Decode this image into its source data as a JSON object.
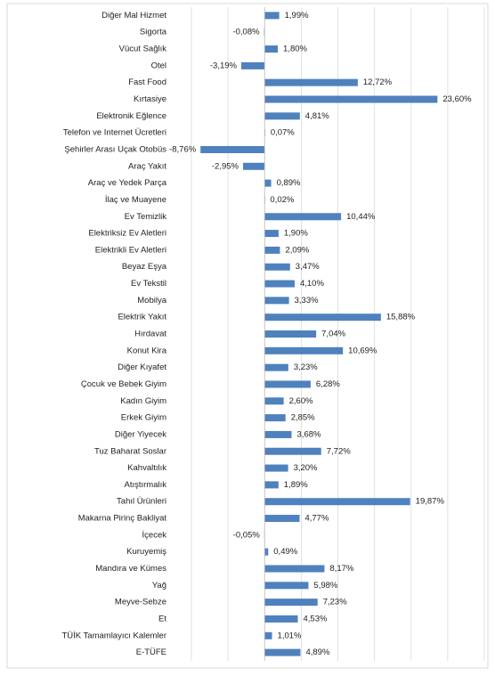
{
  "chart_data": {
    "type": "hbar",
    "color": "#4f81bd",
    "categories": [
      "Diğer Mal Hizmet",
      "Sigorta",
      "Vücut Sağlık",
      "Otel",
      "Fast Food",
      "Kırtasiye",
      "Elektronik Eğlence",
      "Telefon ve Internet Ücretleri",
      "Şehirler Arası Uçak Otobüs",
      "Araç Yakıt",
      "Araç ve Yedek Parça",
      "İlaç ve Muayene",
      "Ev Temizlik",
      "Elektriksiz Ev Aletleri",
      "Elektrikli Ev Aletleri",
      "Beyaz Eşya",
      "Ev Tekstil",
      "Mobilya",
      "Elektrik Yakıt",
      "Hırdavat",
      "Konut Kira",
      "Diğer Kıyafet",
      "Çocuk ve Bebek Giyim",
      "Kadın Giyim",
      "Erkek Giyim",
      "Diğer Yiyecek",
      "Tuz Baharat Soslar",
      "Kahvaltılık",
      "Atıştırmalık",
      "Tahıl Ürünleri",
      "Makarna Pirinç Bakliyat",
      "İçecek",
      "Kuruyemiş",
      "Mandıra ve Kümes",
      "Yağ",
      "Meyve-Sebze",
      "Et",
      "TÜİK Tamamlayıcı Kalemler",
      "E-TÜFE"
    ],
    "values": [
      1.99,
      -0.08,
      1.8,
      -3.19,
      12.72,
      23.6,
      4.81,
      0.07,
      -8.76,
      -2.95,
      0.89,
      0.02,
      10.44,
      1.9,
      2.09,
      3.47,
      4.1,
      3.33,
      15.88,
      7.04,
      10.69,
      3.23,
      6.28,
      2.6,
      2.85,
      3.68,
      7.72,
      3.2,
      1.89,
      19.87,
      4.77,
      -0.05,
      0.49,
      8.17,
      5.98,
      7.23,
      4.53,
      1.01,
      4.89
    ],
    "value_labels": [
      "1,99%",
      "-0,08%",
      "1,80%",
      "-3,19%",
      "12,72%",
      "23,60%",
      "4,81%",
      "0,07%",
      "-8,76%",
      "-2,95%",
      "0,89%",
      "0,02%",
      "10,44%",
      "1,90%",
      "2,09%",
      "3,47%",
      "4,10%",
      "3,33%",
      "15,88%",
      "7,04%",
      "10,69%",
      "3,23%",
      "6,28%",
      "2,60%",
      "2,85%",
      "3,68%",
      "7,72%",
      "3,20%",
      "1,89%",
      "19,87%",
      "4,77%",
      "-0,05%",
      "0,49%",
      "8,17%",
      "5,98%",
      "7,23%",
      "4,53%",
      "1,01%",
      "4,89%"
    ],
    "xlim": [
      -10,
      30
    ],
    "grid": true
  }
}
